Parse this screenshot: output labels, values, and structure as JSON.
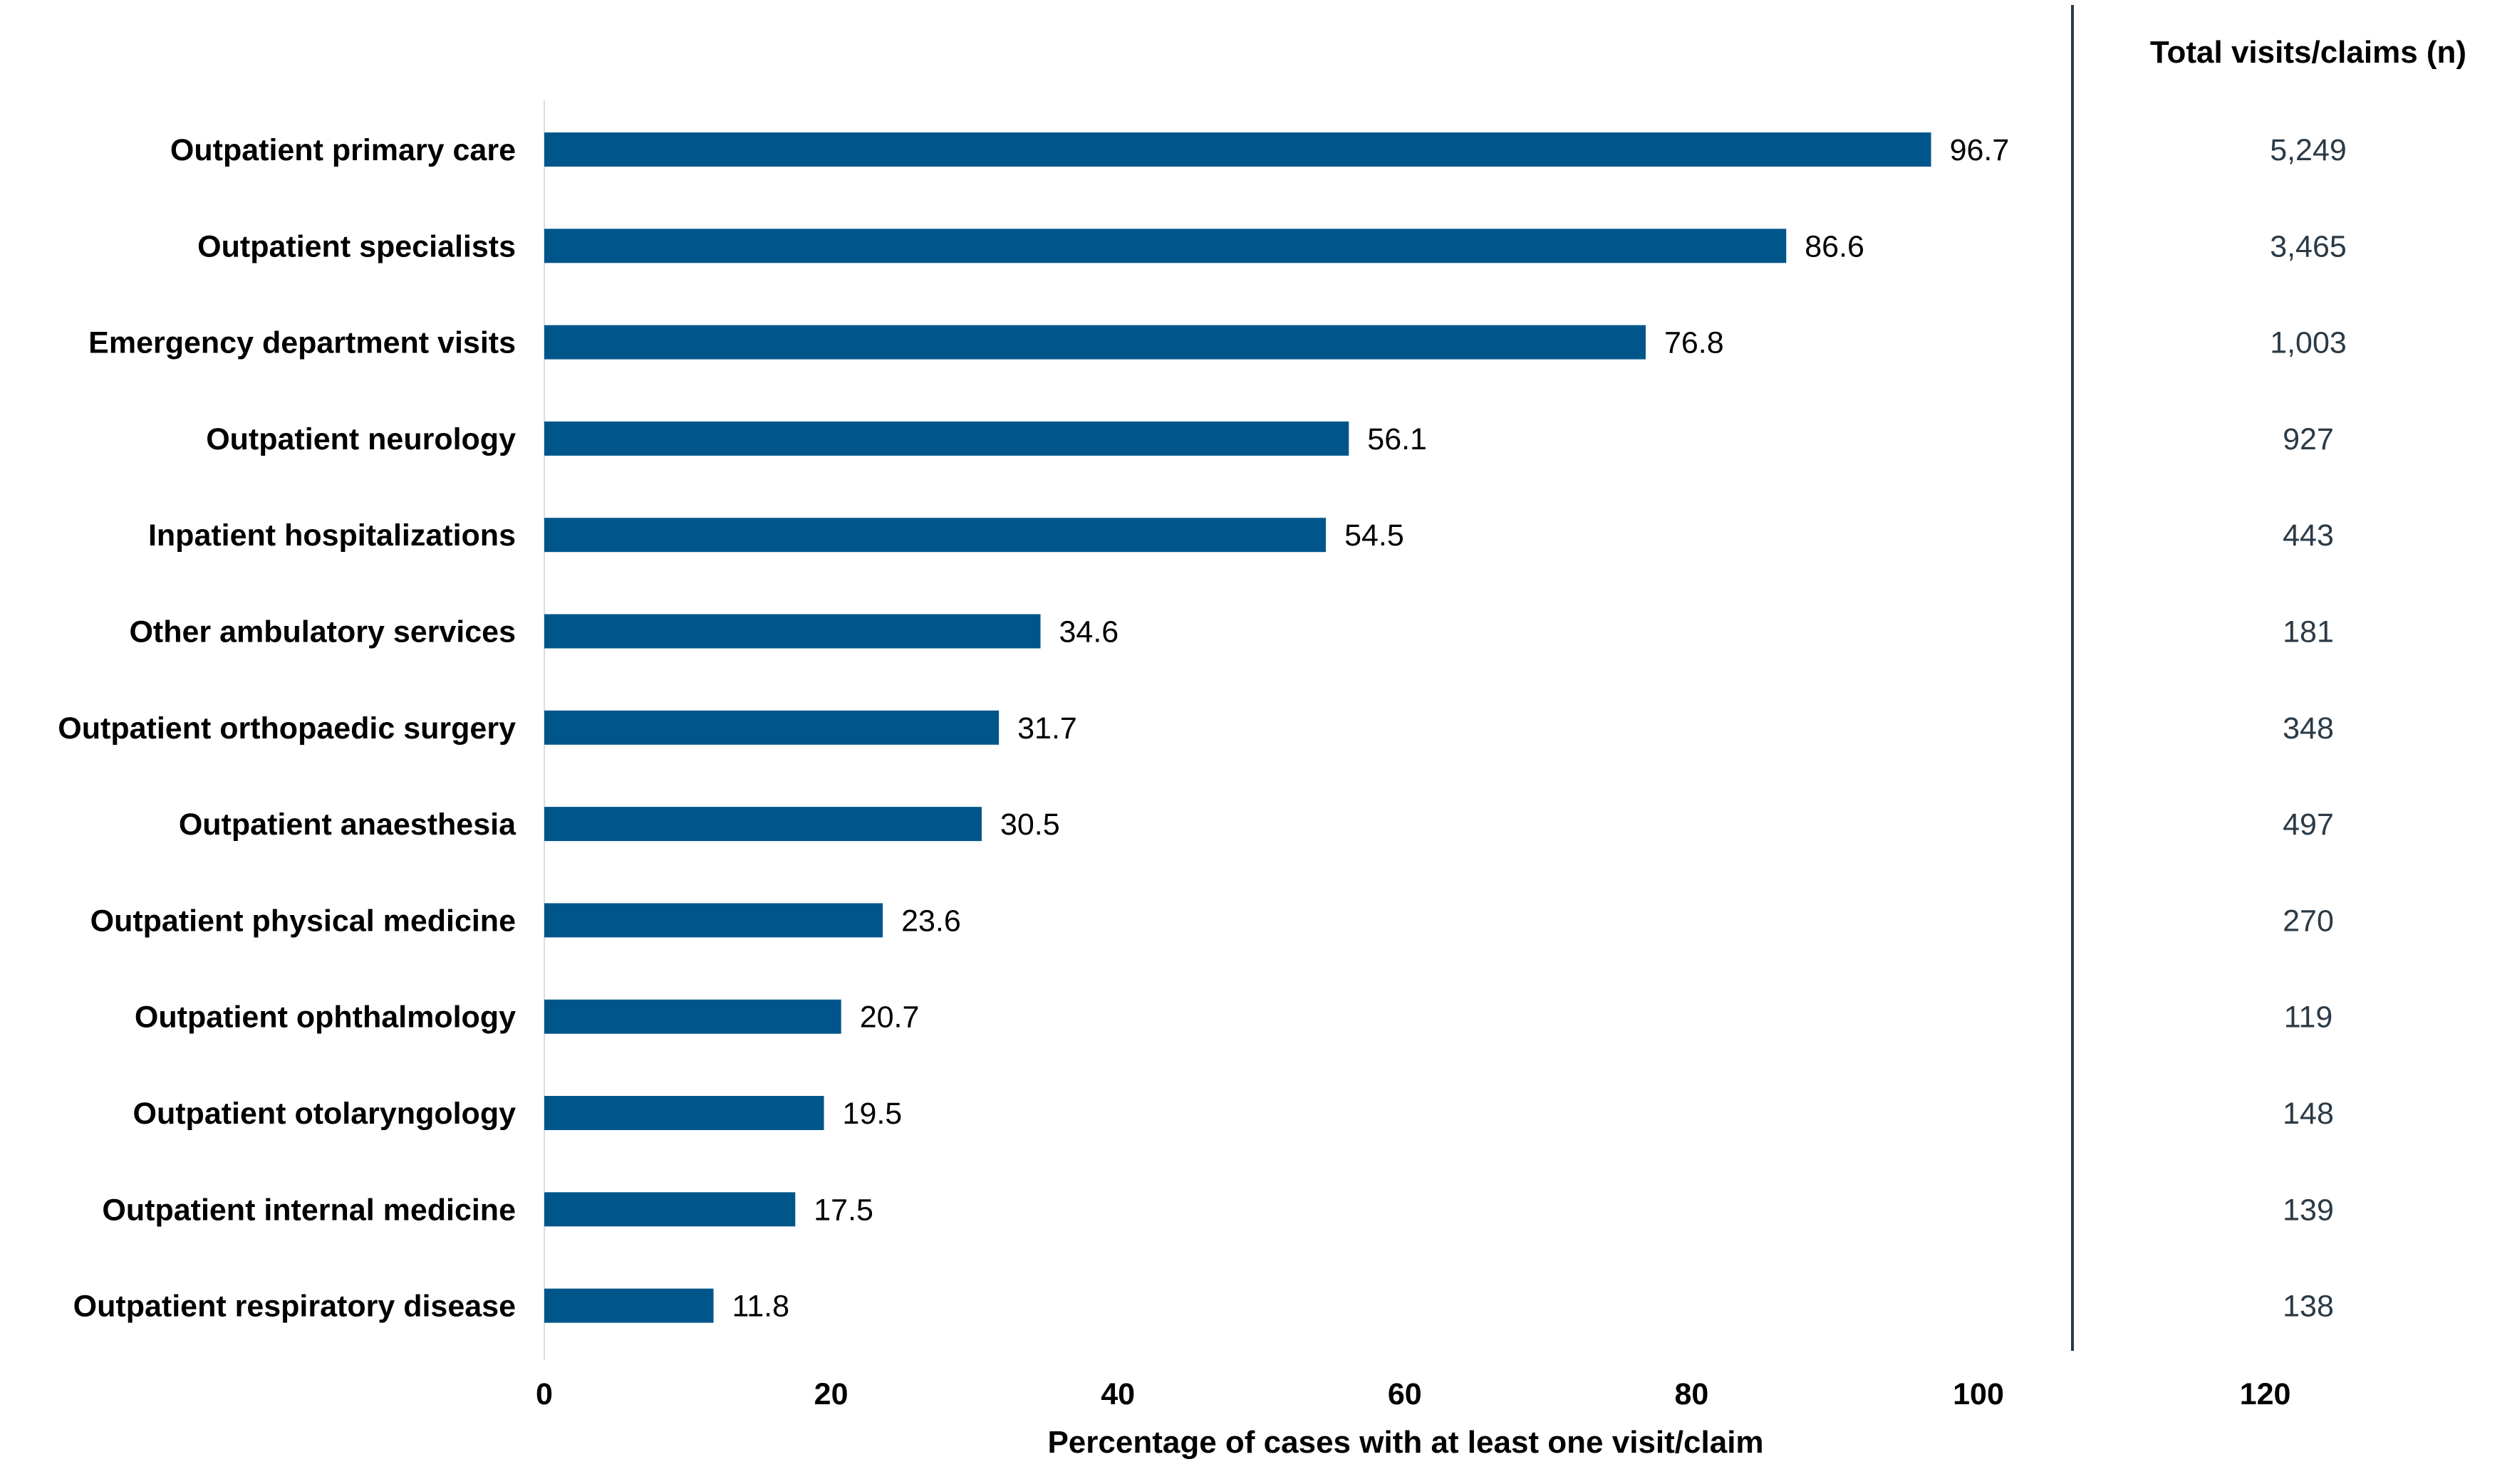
{
  "chart_data": {
    "type": "bar",
    "orientation": "horizontal",
    "categories": [
      "Outpatient primary care",
      "Outpatient specialists",
      "Emergency department visits",
      "Outpatient neurology",
      "Inpatient hospitalizations",
      "Other ambulatory services",
      "Outpatient orthopaedic surgery",
      "Outpatient anaesthesia",
      "Outpatient physical medicine",
      "Outpatient ophthalmology",
      "Outpatient otolaryngology",
      "Outpatient internal medicine",
      "Outpatient respiratory disease"
    ],
    "values": [
      96.7,
      86.6,
      76.8,
      56.1,
      54.5,
      34.6,
      31.7,
      30.5,
      23.6,
      20.7,
      19.5,
      17.5,
      11.8
    ],
    "value_labels": [
      "96.7",
      "86.6",
      "76.8",
      "56.1",
      "54.5",
      "34.6",
      "31.7",
      "30.5",
      "23.6",
      "20.7",
      "19.5",
      "17.5",
      "11.8"
    ],
    "totals_header": "Total visits/claims (n)",
    "totals": [
      "5,249",
      "3,465",
      "1,003",
      "927",
      "443",
      "181",
      "348",
      "497",
      "270",
      "119",
      "148",
      "139",
      "138"
    ],
    "xlabel": "Percentage of cases with at least one visit/claim",
    "ylabel": "",
    "xlim": [
      0,
      120
    ],
    "xticks": [
      "0",
      "20",
      "40",
      "60",
      "80",
      "100",
      "120"
    ],
    "grid": false,
    "bar_color": "#00568a"
  }
}
